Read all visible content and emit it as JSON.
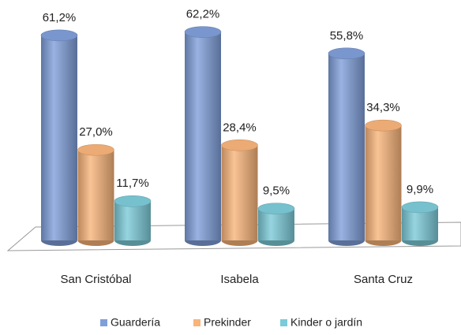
{
  "chart_data": {
    "type": "bar3d",
    "categories": [
      "San Cristóbal",
      "Isabela",
      "Santa Cruz"
    ],
    "series": [
      {
        "name": "Guardería",
        "color": "#7f9fd9",
        "values": [
          61.2,
          62.2,
          55.8
        ],
        "value_labels": [
          "61,2%",
          "62,2%",
          "55,8%"
        ]
      },
      {
        "name": "Prekinder",
        "color": "#f8b47a",
        "values": [
          27.0,
          28.4,
          34.3
        ],
        "value_labels": [
          "27,0%",
          "28,4%",
          "34,3%"
        ]
      },
      {
        "name": "Kinder o jardín",
        "color": "#7ccbd8",
        "values": [
          11.7,
          9.5,
          9.9
        ],
        "value_labels": [
          "11,7%",
          "9,5%",
          "9,9%"
        ]
      }
    ],
    "legend": "bottom"
  }
}
